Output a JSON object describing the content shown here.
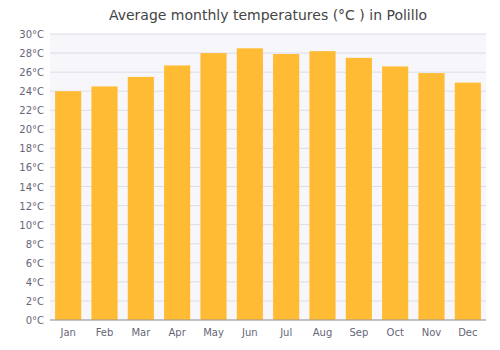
{
  "chart_data": {
    "type": "bar",
    "title": "Average monthly temperatures (°C ) in Polillo",
    "categories": [
      "Jan",
      "Feb",
      "Mar",
      "Apr",
      "May",
      "Jun",
      "Jul",
      "Aug",
      "Sep",
      "Oct",
      "Nov",
      "Dec"
    ],
    "values": [
      24.0,
      24.5,
      25.5,
      26.7,
      28.0,
      28.5,
      27.9,
      28.2,
      27.5,
      26.6,
      25.9,
      24.9
    ],
    "color": "#FFBB33",
    "ylim": [
      0,
      30
    ],
    "yticks": [
      {
        "value": 0,
        "label": "0°C"
      },
      {
        "value": 2,
        "label": "2°C"
      },
      {
        "value": 4,
        "label": "4°C"
      },
      {
        "value": 6,
        "label": "6°C"
      },
      {
        "value": 8,
        "label": "8°C"
      },
      {
        "value": 10,
        "label": "10°C"
      },
      {
        "value": 12,
        "label": "12°C"
      },
      {
        "value": 14,
        "label": "14°C"
      },
      {
        "value": 16,
        "label": "16°C"
      },
      {
        "value": 18,
        "label": "18°C"
      },
      {
        "value": 20,
        "label": "20°C"
      },
      {
        "value": 22,
        "label": "22°C"
      },
      {
        "value": 24,
        "label": "24°C"
      },
      {
        "value": 26,
        "label": "26°C"
      },
      {
        "value": 28,
        "label": "28°C"
      },
      {
        "value": 30,
        "label": "30°C"
      }
    ],
    "grid": true
  }
}
